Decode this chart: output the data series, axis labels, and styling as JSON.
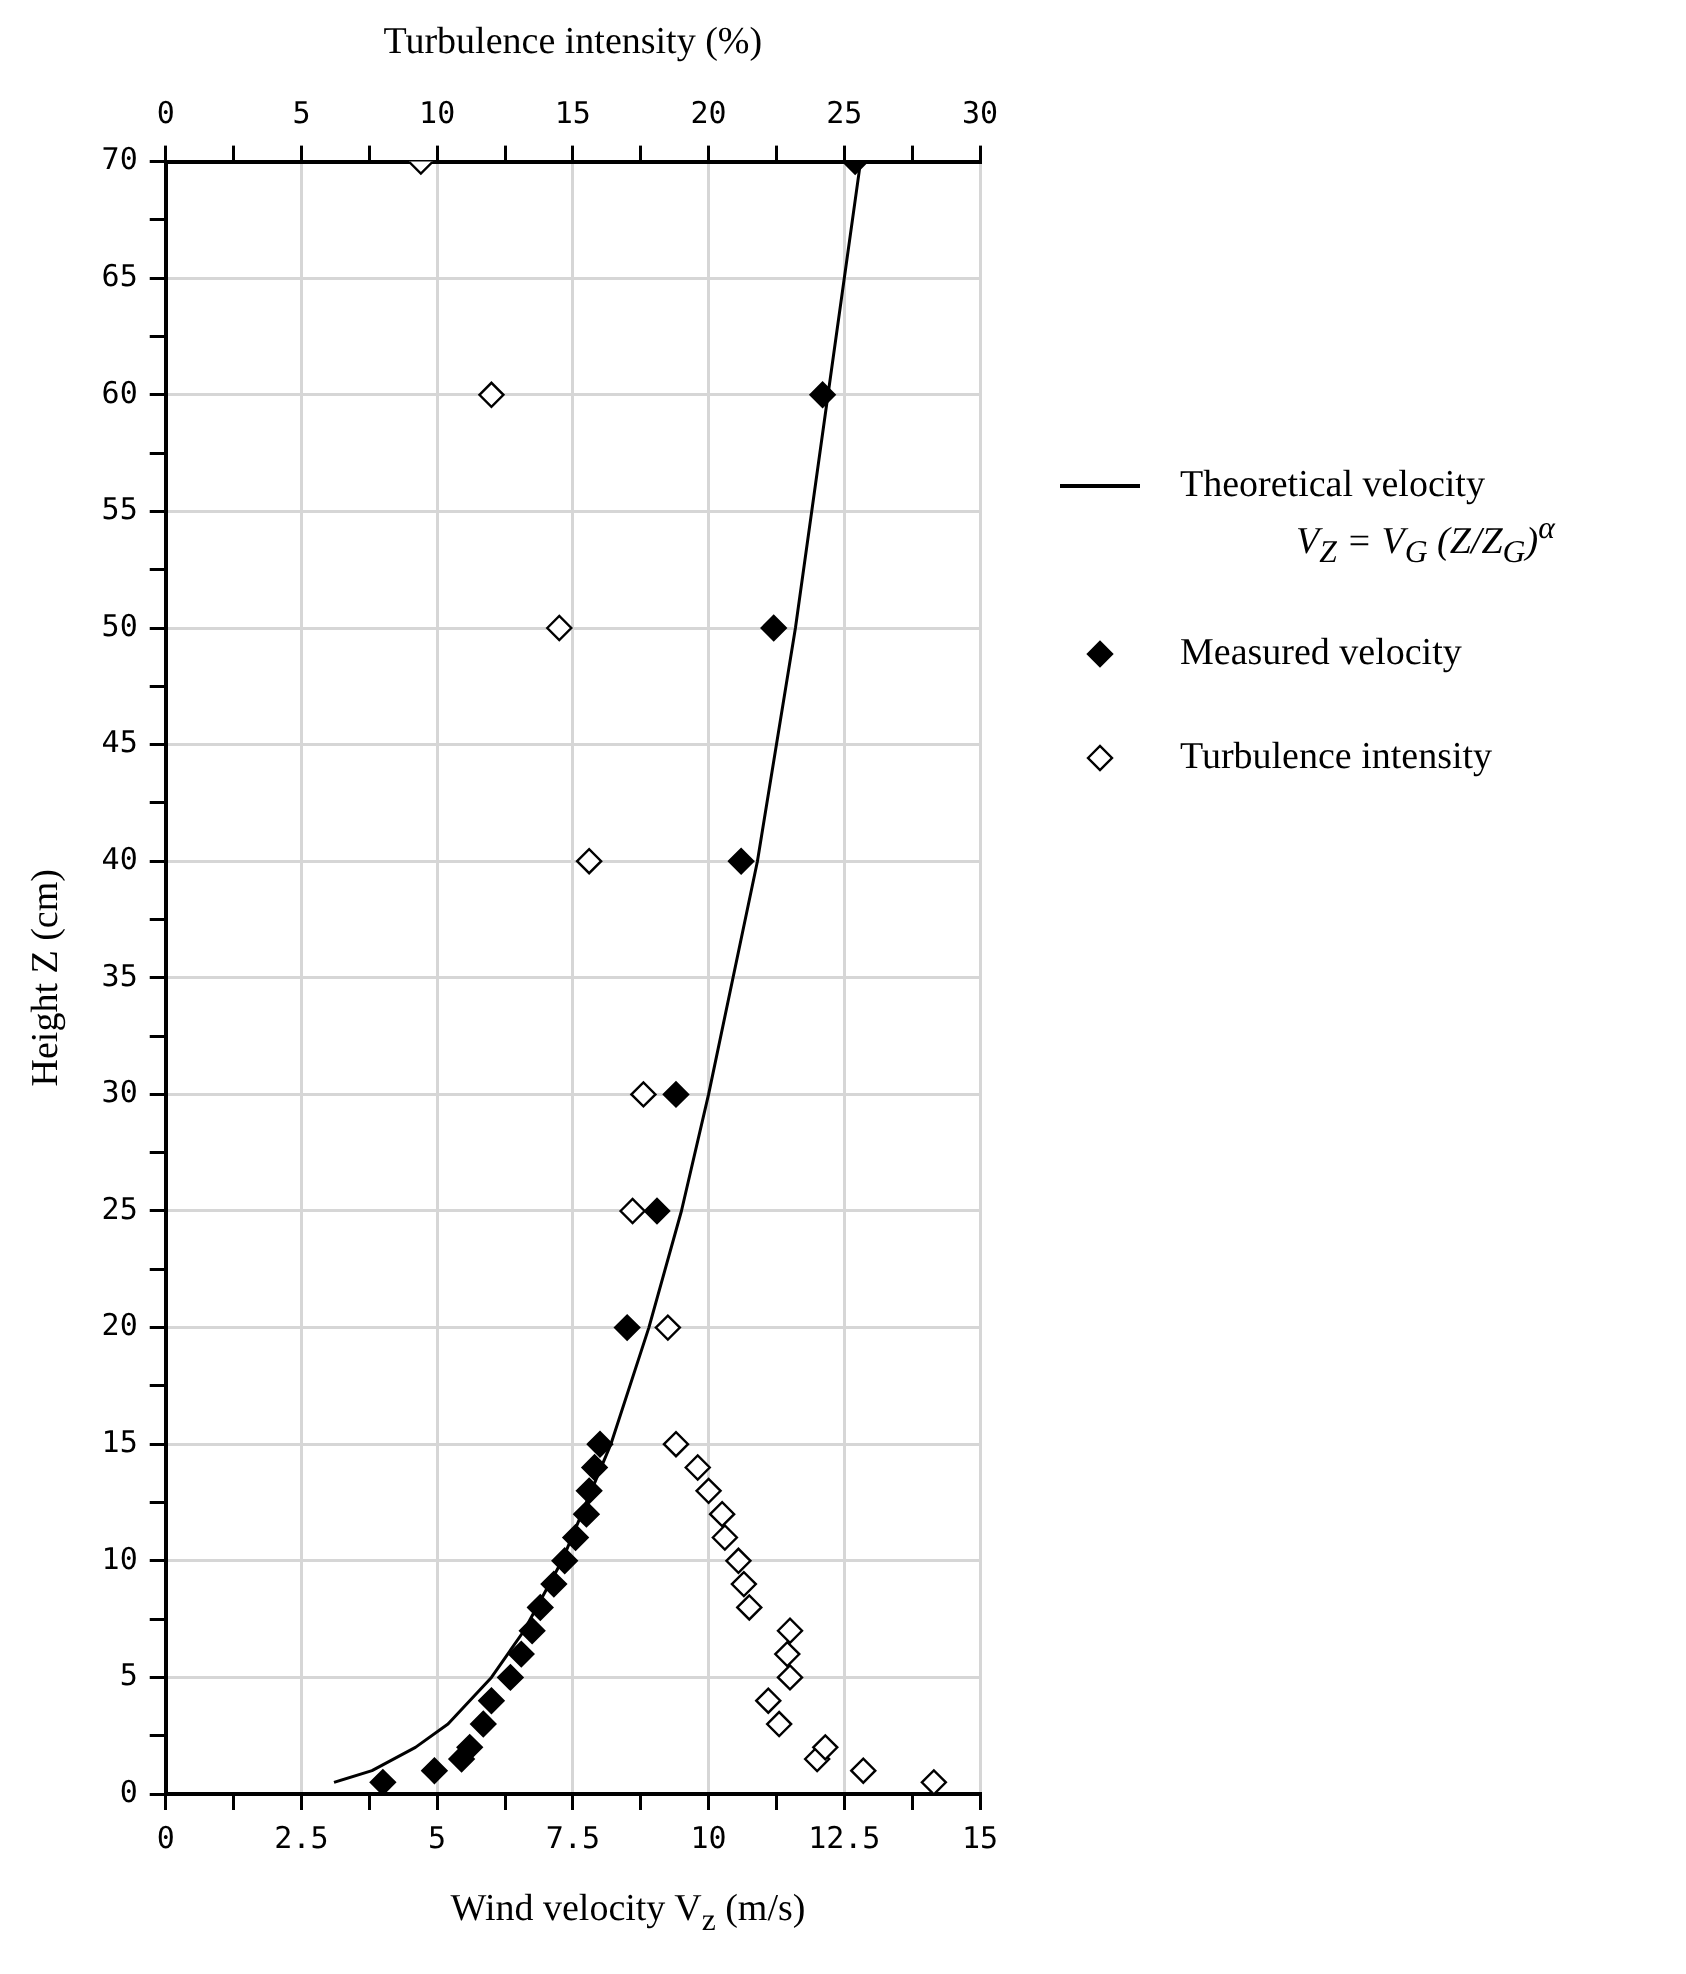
{
  "chart_data": {
    "type": "scatter",
    "xlabel": "Wind velocity V$_{z}$ (m/s)",
    "ylabel": "Height Z (cm)",
    "x2label": "Turbulence intensity (%)",
    "xlim": [
      0,
      15
    ],
    "xticks": [
      0,
      {
        "value": 1.25,
        "label": null
      },
      2.5,
      {
        "value": 3.75,
        "label": null
      },
      5,
      {
        "value": 6.25,
        "label": null
      },
      7.5,
      {
        "value": 8.75,
        "label": null
      },
      10,
      {
        "value": 11.25,
        "label": null
      },
      12.5,
      {
        "value": 13.75,
        "label": null
      },
      15
    ],
    "x2lim": [
      0,
      30
    ],
    "x2ticks": [
      0,
      {
        "value": 2.5,
        "label": null
      },
      5,
      {
        "value": 7.5,
        "label": null
      },
      10,
      {
        "value": 12.5,
        "label": null
      },
      15,
      {
        "value": 17.5,
        "label": null
      },
      20,
      {
        "value": 22.5,
        "label": null
      },
      25,
      {
        "value": 27.5,
        "label": null
      },
      30
    ],
    "ylim": [
      0,
      70
    ],
    "yticks": [
      0,
      {
        "value": 2.5,
        "label": null
      },
      5,
      {
        "value": 7.5,
        "label": null
      },
      10,
      {
        "value": 12.5,
        "label": null
      },
      15,
      {
        "value": 17.5,
        "label": null
      },
      20,
      {
        "value": 22.5,
        "label": null
      },
      25,
      {
        "value": 27.5,
        "label": null
      },
      30,
      {
        "value": 32.5,
        "label": null
      },
      35,
      {
        "value": 37.5,
        "label": null
      },
      40,
      {
        "value": 42.5,
        "label": null
      },
      45,
      {
        "value": 47.5,
        "label": null
      },
      50,
      {
        "value": 52.5,
        "label": null
      },
      55,
      {
        "value": 57.5,
        "label": null
      },
      60,
      {
        "value": 62.5,
        "label": null
      },
      65,
      {
        "value": 67.5,
        "label": null
      },
      70
    ],
    "grid": true,
    "legend": "right",
    "annotations": [
      "V$_{Z}$ = V$_{G}$ (Z/Z$_{G}$)$^{α}$"
    ],
    "series": [
      {
        "name": "Theoretical velocity",
        "type": "line",
        "marker": "none",
        "color": "#000000",
        "x": [
          3.1,
          3.8,
          4.6,
          5.2,
          6.0,
          6.6,
          7.3,
          8.2,
          8.9,
          9.5,
          10.0,
          10.9,
          11.6,
          12.2,
          12.8
        ],
        "values": [
          0.5,
          1,
          2,
          3,
          5,
          7,
          10,
          15,
          20,
          25,
          30,
          40,
          50,
          60,
          70
        ]
      },
      {
        "name": "Measured velocity",
        "type": "scatter",
        "marker": "diamond",
        "color": "#000000",
        "x": [
          4.0,
          4.95,
          5.45,
          5.6,
          5.85,
          6.0,
          6.35,
          6.55,
          6.75,
          6.9,
          7.15,
          7.35,
          7.55,
          7.75,
          7.8,
          7.9,
          8.0,
          8.5,
          9.05,
          9.4,
          10.6,
          11.2,
          12.1,
          12.7
        ],
        "values": [
          0.5,
          1,
          1.5,
          2,
          3,
          4,
          5,
          6,
          7,
          8,
          9,
          10,
          11,
          12,
          13,
          14,
          15,
          20,
          25,
          30,
          40,
          50,
          60,
          70
        ]
      },
      {
        "name": "Turbulence intensity",
        "type": "scatter",
        "marker": "diamond",
        "axis": "x2",
        "color": "#ffffff",
        "x": [
          28.3,
          25.7,
          24.0,
          24.3,
          22.6,
          22.2,
          23.0,
          22.9,
          23.0,
          21.5,
          21.3,
          21.1,
          20.6,
          20.5,
          20.0,
          19.6,
          18.8,
          18.5,
          17.2,
          17.6,
          15.6,
          14.5,
          12.0,
          9.4
        ],
        "values": [
          0.5,
          1,
          1.5,
          2,
          3,
          4,
          5,
          6,
          7,
          8,
          9,
          10,
          11,
          12,
          13,
          14,
          15,
          20,
          25,
          30,
          40,
          50,
          60,
          70
        ]
      }
    ]
  }
}
